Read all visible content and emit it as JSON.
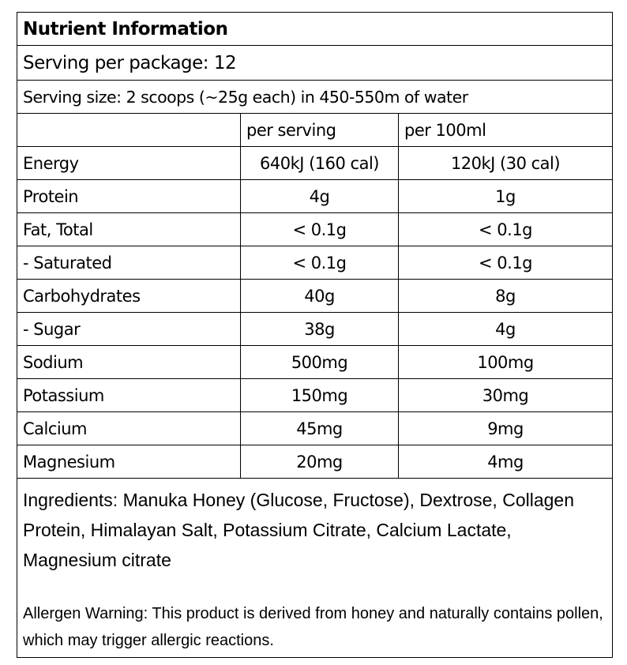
{
  "title": "Nutrient Information",
  "serving_per_package": "Serving per package: 12",
  "serving_size": "Serving size: 2 scoops (~25g each) in 450-550m of water",
  "columns": [
    "",
    "per serving",
    "per 100ml"
  ],
  "rows": [
    {
      "name": "Energy",
      "per_serving": "640kJ (160 cal)",
      "per_100ml": "120kJ (30 cal)"
    },
    {
      "name": "Protein",
      "per_serving": "4g",
      "per_100ml": "1g"
    },
    {
      "name": "Fat, Total",
      "per_serving": "< 0.1g",
      "per_100ml": "< 0.1g"
    },
    {
      "name": "- Saturated",
      "per_serving": "< 0.1g",
      "per_100ml": "< 0.1g"
    },
    {
      "name": "Carbohydrates",
      "per_serving": "40g",
      "per_100ml": "8g"
    },
    {
      "name": "- Sugar",
      "per_serving": "38g",
      "per_100ml": "4g"
    },
    {
      "name": "Sodium",
      "per_serving": "500mg",
      "per_100ml": "100mg"
    },
    {
      "name": "Potassium",
      "per_serving": "150mg",
      "per_100ml": "30mg"
    },
    {
      "name": "Calcium",
      "per_serving": "45mg",
      "per_100ml": "9mg"
    },
    {
      "name": "Magnesium",
      "per_serving": "20mg",
      "per_100ml": "4mg"
    }
  ],
  "ingredients": "Ingredients: Manuka Honey (Glucose, Fructose), Dextrose, Collagen Protein, Himalayan Salt, Potassium Citrate, Calcium Lactate, Magnesium citrate",
  "allergen_warning": "Allergen Warning: This product is derived from honey and naturally contains pollen, which may trigger allergic reactions."
}
